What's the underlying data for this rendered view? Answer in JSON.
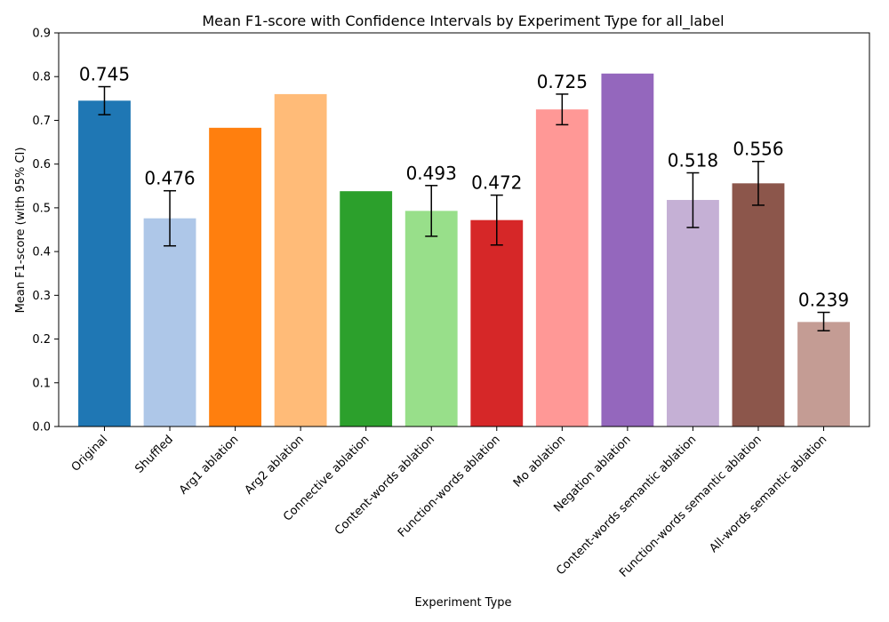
{
  "chart_data": {
    "type": "bar",
    "title": "Mean F1-score with Confidence Intervals by Experiment Type for all_label",
    "xlabel": "Experiment Type",
    "ylabel": "Mean F1-score (with 95% CI)",
    "ylim": [
      0,
      0.9
    ],
    "yticks": [
      "0.0",
      "0.1",
      "0.2",
      "0.3",
      "0.4",
      "0.5",
      "0.6",
      "0.7",
      "0.8",
      "0.9"
    ],
    "grid": false,
    "categories": [
      "Original",
      "Shuffled",
      "Arg1 ablation",
      "Arg2 ablation",
      "Connective ablation",
      "Content-words ablation",
      "Function-words ablation",
      "Mo ablation",
      "Negation ablation",
      "Content-words semantic ablation",
      "Function-words semantic ablation",
      "All-words semantic ablation"
    ],
    "values": [
      0.745,
      0.476,
      0.683,
      0.76,
      0.538,
      0.493,
      0.472,
      0.725,
      0.807,
      0.518,
      0.556,
      0.239
    ],
    "ci_low": [
      0.713,
      0.413,
      null,
      null,
      null,
      0.435,
      0.415,
      0.69,
      null,
      0.455,
      0.506,
      0.219
    ],
    "ci_high": [
      0.777,
      0.539,
      null,
      null,
      null,
      0.551,
      0.529,
      0.76,
      null,
      0.58,
      0.606,
      0.261
    ],
    "data_labels": [
      "0.745",
      "0.476",
      "",
      "",
      "",
      "0.493",
      "0.472",
      "0.725",
      "",
      "0.518",
      "0.556",
      "0.239"
    ],
    "colors": [
      "#1f77b4",
      "#aec7e8",
      "#ff7f0e",
      "#ffbb78",
      "#2ca02c",
      "#98df8a",
      "#d62728",
      "#ff9896",
      "#9467bd",
      "#c5b0d5",
      "#8c564b",
      "#c49c94"
    ]
  }
}
